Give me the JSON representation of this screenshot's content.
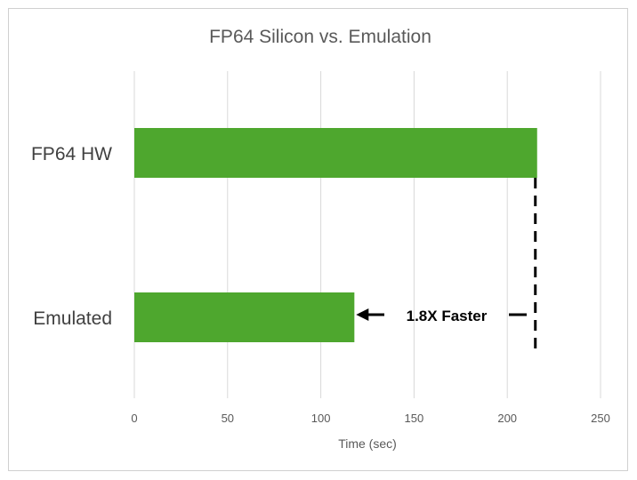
{
  "chart_data": {
    "type": "bar",
    "orientation": "horizontal",
    "title": "FP64 Silicon vs. Emulation",
    "categories": [
      "FP64 HW",
      "Emulated"
    ],
    "values": [
      216,
      118
    ],
    "xlabel": "Time (sec)",
    "ylabel": "",
    "xlim": [
      0,
      250
    ],
    "xticks": [
      0,
      50,
      100,
      150,
      200,
      250
    ],
    "grid": true,
    "bar_color": "#4ea72e",
    "annotation": {
      "text": "1.8X Faster"
    }
  }
}
